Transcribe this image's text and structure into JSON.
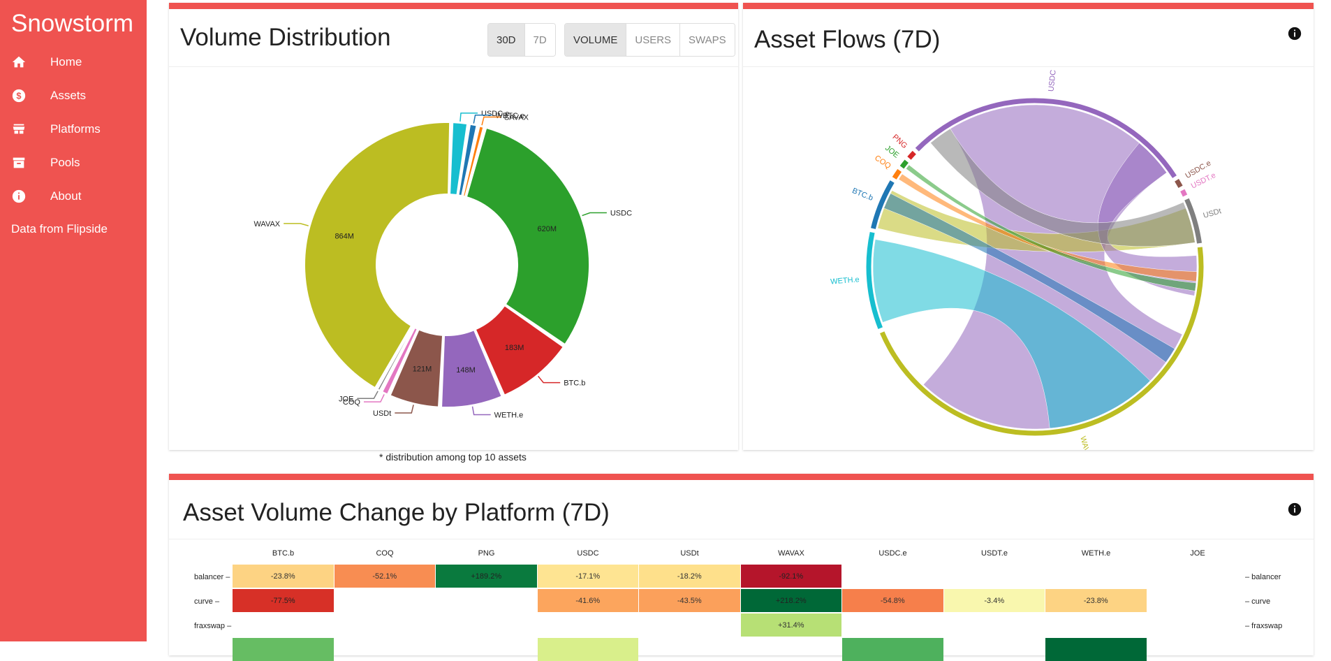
{
  "sidebar": {
    "brand": "Snowstorm",
    "items": [
      {
        "label": "Home",
        "icon": "home-icon"
      },
      {
        "label": "Assets",
        "icon": "dollar-icon"
      },
      {
        "label": "Platforms",
        "icon": "store-icon"
      },
      {
        "label": "Pools",
        "icon": "archive-icon"
      },
      {
        "label": "About",
        "icon": "info-icon"
      }
    ],
    "footer": "Data from Flipside"
  },
  "volume_card": {
    "title": "Volume Distribution",
    "range_buttons": [
      "30D",
      "7D"
    ],
    "metric_buttons": [
      "VOLUME",
      "USERS",
      "SWAPS"
    ],
    "footnote": "* distribution among top 10 assets"
  },
  "flows_card": {
    "title": "Asset Flows (7D)"
  },
  "heatmap_card": {
    "title": "Asset Volume Change by Platform (7D)"
  },
  "chart_data": [
    {
      "type": "pie",
      "variant": "donut",
      "slices": [
        {
          "label": "WAVAX",
          "value": 864,
          "value_label": "864M",
          "color": "#bcbd22"
        },
        {
          "label": "USDC",
          "value": 620,
          "value_label": "620M",
          "color": "#2ca02c"
        },
        {
          "label": "BTC.b",
          "value": 183,
          "value_label": "183M",
          "color": "#d62728"
        },
        {
          "label": "WETH.e",
          "value": 148,
          "value_label": "148M",
          "color": "#9467bd"
        },
        {
          "label": "USDt",
          "value": 121,
          "value_label": "121M",
          "color": "#8c564b"
        },
        {
          "label": "COQ",
          "value": 20,
          "color": "#e377c2"
        },
        {
          "label": "JOE",
          "value": 12,
          "color": "#7f7f7f"
        },
        {
          "label": "USDC.e",
          "value": 40,
          "color": "#17becf"
        },
        {
          "label": "WBTC.e",
          "value": 22,
          "color": "#1f77b4"
        },
        {
          "label": "SAVAX",
          "value": 16,
          "color": "#ff7f0e"
        }
      ]
    },
    {
      "type": "chord",
      "groups": [
        {
          "label": "WETH.e",
          "color": "#17becf"
        },
        {
          "label": "BTC.b",
          "color": "#1f77b4"
        },
        {
          "label": "COQ",
          "color": "#ff7f0e"
        },
        {
          "label": "JOE",
          "color": "#2ca02c"
        },
        {
          "label": "PNG",
          "color": "#d62728"
        },
        {
          "label": "USDC",
          "color": "#9467bd"
        },
        {
          "label": "USDC.e",
          "color": "#8c564b"
        },
        {
          "label": "USDT.e",
          "color": "#e377c2"
        },
        {
          "label": "USDt",
          "color": "#7f7f7f"
        },
        {
          "label": "WAVAX",
          "color": "#bcbd22"
        }
      ]
    },
    {
      "type": "heatmap",
      "columns": [
        "BTC.b",
        "COQ",
        "PNG",
        "USDC",
        "USDt",
        "WAVAX",
        "USDC.e",
        "USDT.e",
        "WETH.e",
        "JOE"
      ],
      "rows": [
        {
          "label": "balancer",
          "cells": [
            "-23.8%",
            "-52.1%",
            "+189.2%",
            "-17.1%",
            "-18.2%",
            "-92.1%",
            "",
            "",
            "",
            ""
          ],
          "colors": [
            "#fdd383",
            "#f88d52",
            "#0a7a3e",
            "#fee492",
            "#fee08b",
            "#b5152b",
            "",
            "",
            "",
            ""
          ]
        },
        {
          "label": "curve",
          "cells": [
            "-77.5%",
            "",
            "",
            "-41.6%",
            "-43.5%",
            "+218.2%",
            "-54.8%",
            "-3.4%",
            "-23.8%",
            ""
          ],
          "colors": [
            "#d73027",
            "",
            "",
            "#fca55d",
            "#fba05b",
            "#006837",
            "#f67f4b",
            "#f9f7ae",
            "#fdd383",
            ""
          ]
        },
        {
          "label": "fraxswap",
          "cells": [
            "",
            "",
            "",
            "",
            "",
            "+31.4%",
            "",
            "",
            "",
            ""
          ],
          "colors": [
            "",
            "",
            "",
            "",
            "",
            "#b7e075",
            "",
            "",
            "",
            ""
          ]
        },
        {
          "label": "",
          "cells": [
            "",
            "",
            "",
            "",
            "",
            "",
            "",
            "",
            "",
            ""
          ],
          "colors": [
            "#66bd63",
            "",
            "",
            "#d9ef8b",
            "",
            "",
            "#4eb15d",
            "",
            "#006837",
            ""
          ]
        }
      ]
    }
  ]
}
